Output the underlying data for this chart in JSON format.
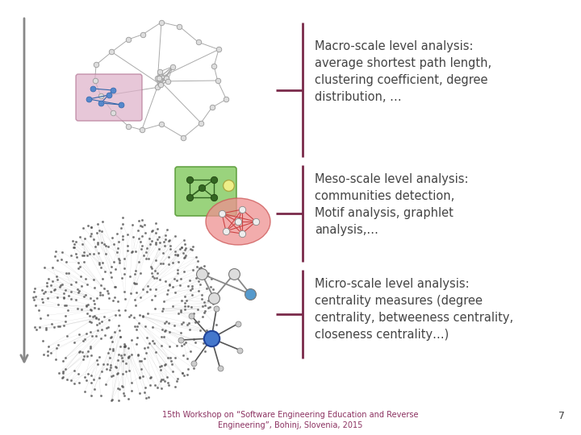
{
  "background_color": "#ffffff",
  "arrow_color": "#888888",
  "bracket_color": "#7a2a4a",
  "text_color": "#444444",
  "footer_color": "#8B3060",
  "page_number": "7",
  "macro_text": "Macro-scale level analysis:\naverage shortest path length,\nclustering coefficient, degree\ndistribution, …",
  "meso_text": "Meso-scale level analysis:\ncommunities detection,\nMotif analysis, graphlet\nanalysis,…",
  "micro_text": "Micro-scale level analysis:\ncentrality measures (degree\ncentrality, betweeness centrality,\ncloseness centrality…)",
  "footer_line1": "15th Workshop on “Software Engineering Education and Reverse",
  "footer_line2": "Engineering”, Bohinj, Slovenia, 2015",
  "font_size_text": 10.5,
  "font_size_footer": 7.0
}
